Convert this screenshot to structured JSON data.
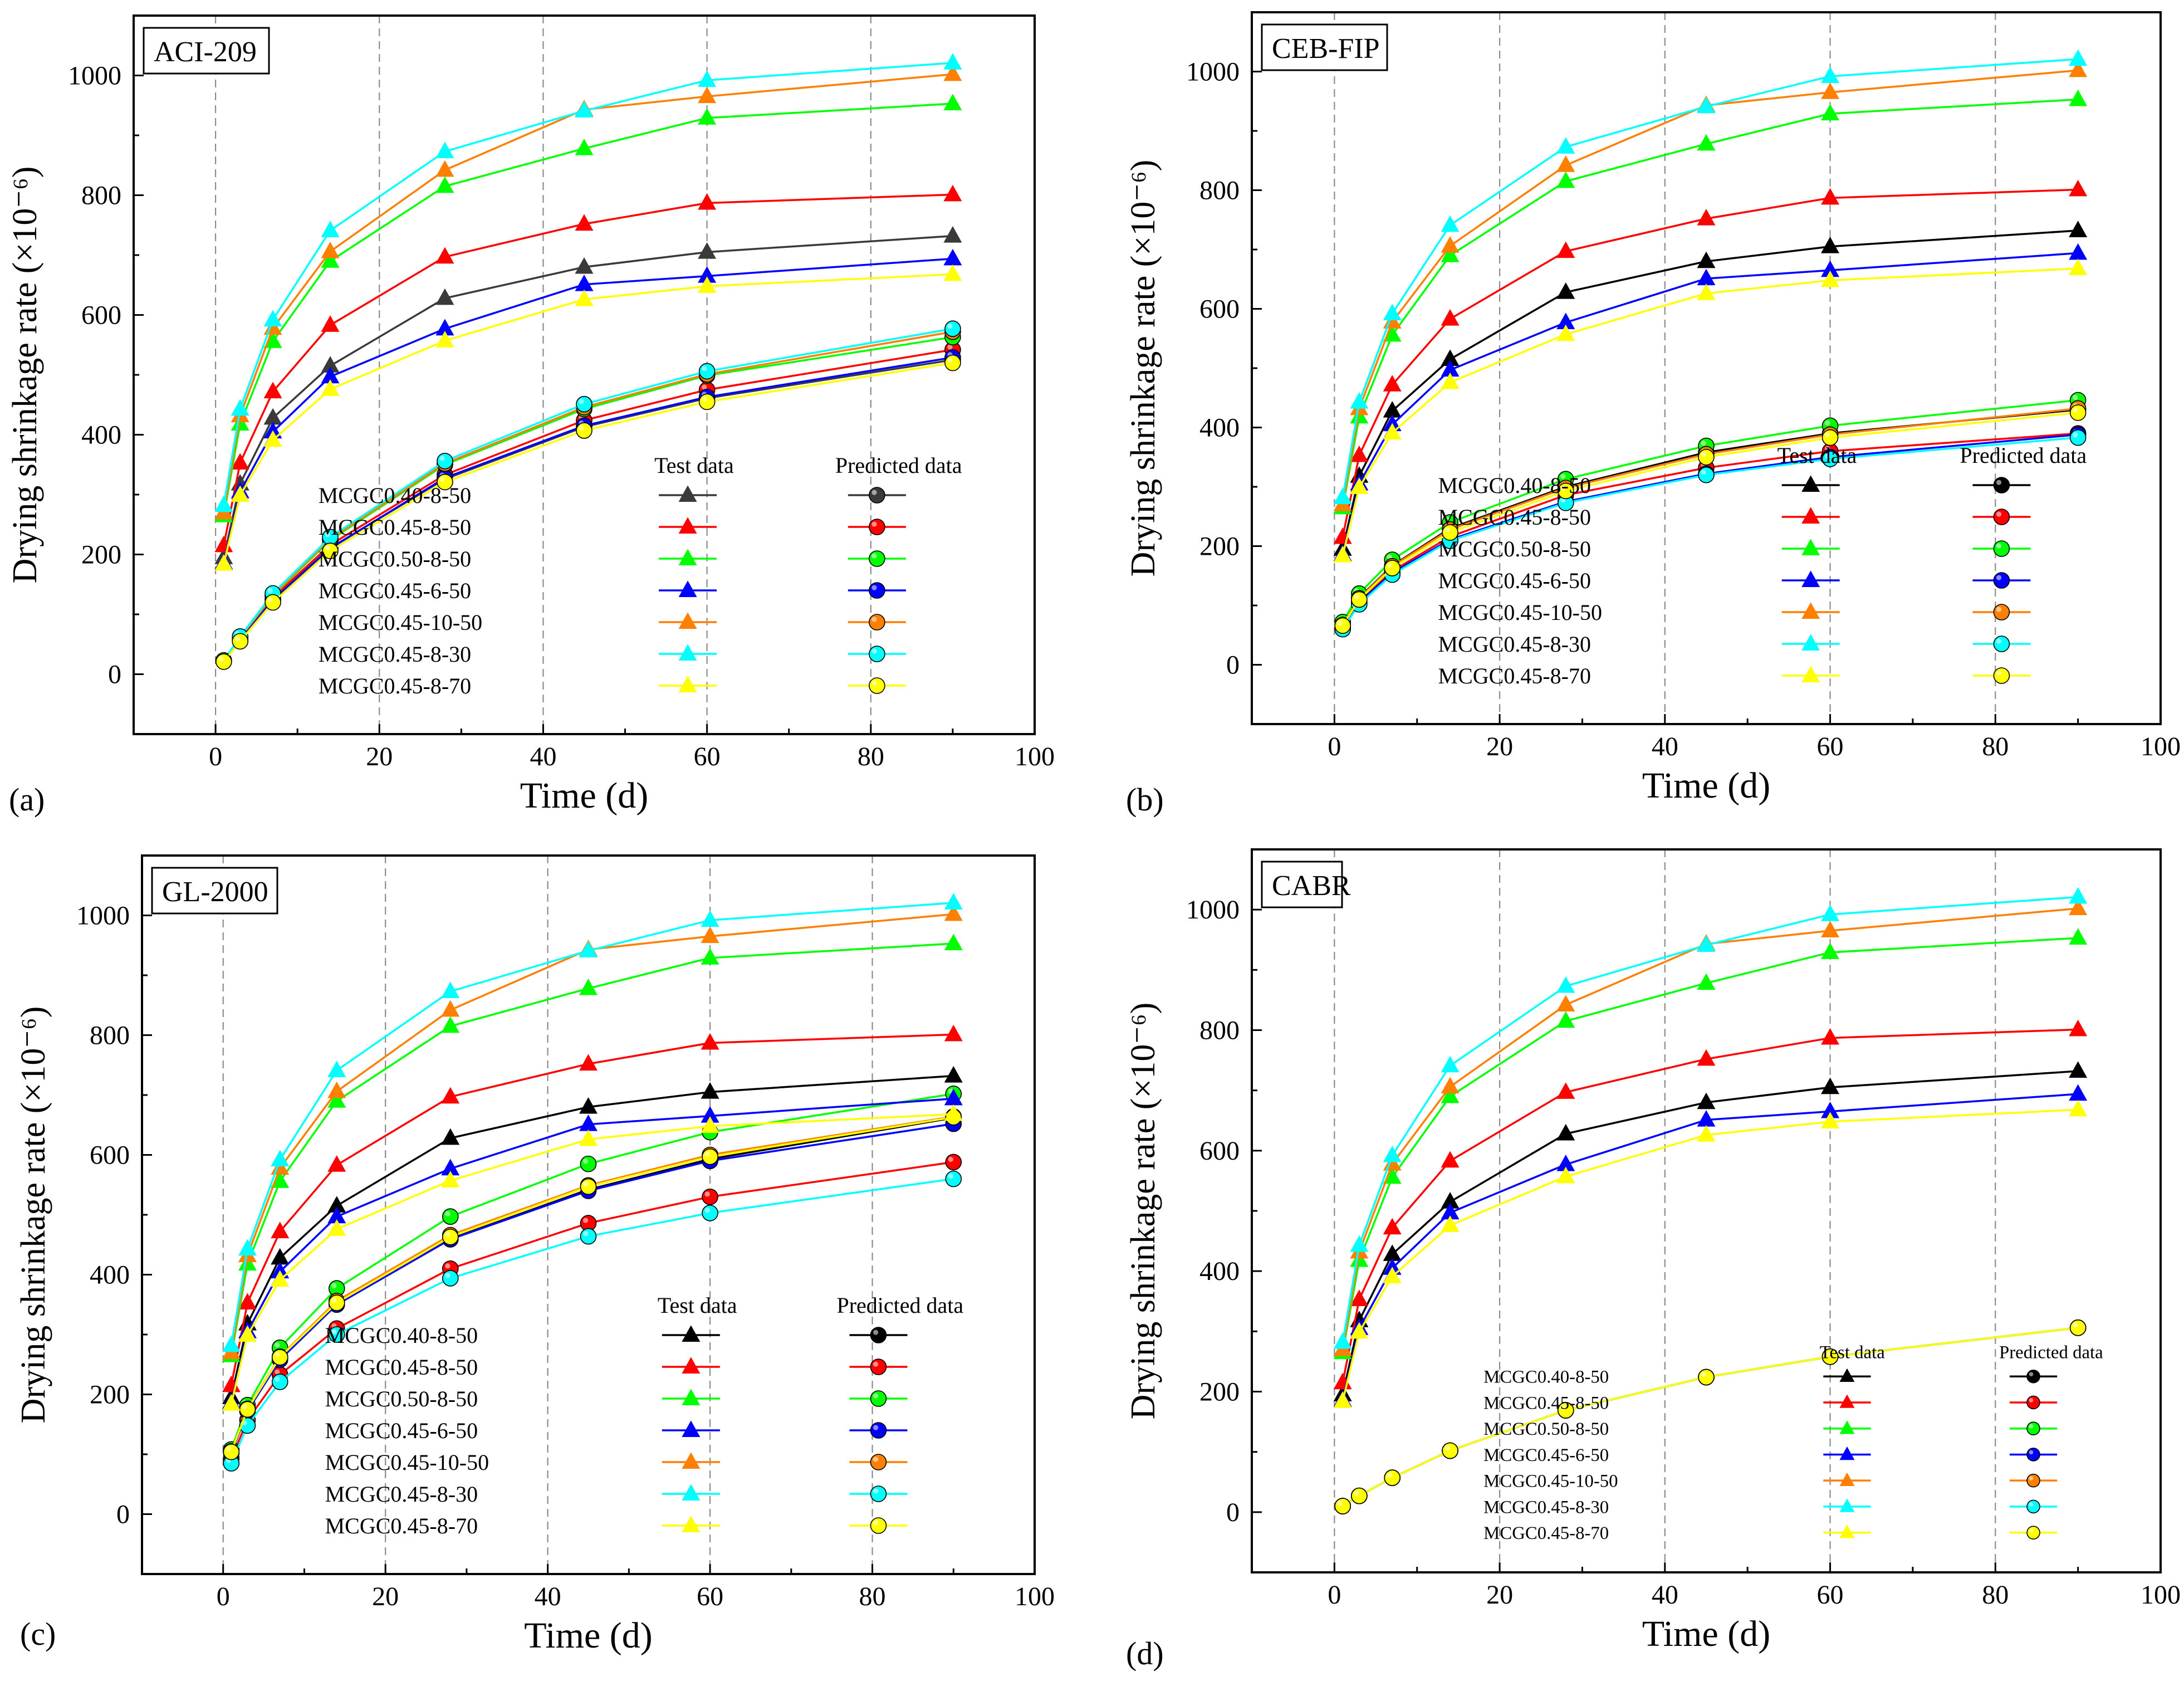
{
  "chart_data": [
    {
      "type": "line",
      "panel_label": "(a)",
      "title": "ACI-209",
      "xlabel": "Time (d)",
      "ylabel": "Drying shrinkage rate (×10⁻⁶)",
      "xlim": [
        -10,
        100
      ],
      "ylim": [
        -100,
        1100
      ],
      "xticks": [
        0,
        20,
        40,
        60,
        80,
        100
      ],
      "yticks": [
        0,
        200,
        400,
        600,
        800,
        1000
      ],
      "grid": "vertical dashed at x = 0, 20, 40, 60, 80",
      "legend": {
        "position": "bottom-right",
        "header_test": "Test data",
        "header_pred": "Predicted data"
      },
      "x": [
        1,
        3,
        7,
        14,
        28,
        45,
        60,
        90
      ],
      "series": [
        {
          "name": "MCGC0.40-8-50",
          "color": "#3a3a3a",
          "test": [
            195,
            318,
            428,
            515,
            628,
            680,
            705,
            732
          ],
          "predicted": [
            22,
            56,
            125,
            211,
            326,
            413,
            461,
            525
          ]
        },
        {
          "name": "MCGC0.45-8-50",
          "color": "#ff0000",
          "test": [
            215,
            353,
            472,
            583,
            697,
            752,
            787,
            801
          ],
          "predicted": [
            22,
            58,
            128,
            216,
            333,
            424,
            475,
            542
          ]
        },
        {
          "name": "MCGC0.50-8-50",
          "color": "#00ff00",
          "test": [
            265,
            418,
            556,
            690,
            815,
            878,
            929,
            953
          ],
          "predicted": [
            22,
            61,
            131,
            224,
            350,
            443,
            499,
            563
          ]
        },
        {
          "name": "MCGC0.45-6-50",
          "color": "#0000ff",
          "test": [
            186,
            305,
            405,
            497,
            577,
            651,
            665,
            694
          ],
          "predicted": [
            22,
            57,
            124,
            210,
            328,
            415,
            463,
            529
          ]
        },
        {
          "name": "MCGC0.45-10-50",
          "color": "#ff7f00",
          "test": [
            270,
            432,
            578,
            706,
            842,
            943,
            965,
            1002
          ],
          "predicted": [
            23,
            61,
            132,
            226,
            352,
            446,
            501,
            572
          ]
        },
        {
          "name": "MCGC0.45-8-30",
          "color": "#00ffff",
          "test": [
            282,
            443,
            592,
            741,
            873,
            941,
            992,
            1021
          ],
          "predicted": [
            23,
            63,
            135,
            229,
            356,
            451,
            506,
            577
          ]
        },
        {
          "name": "MCGC0.45-8-70",
          "color": "#ffff00",
          "test": [
            184,
            299,
            391,
            476,
            557,
            626,
            648,
            668
          ],
          "predicted": [
            21,
            55,
            120,
            206,
            321,
            407,
            455,
            520
          ]
        }
      ]
    },
    {
      "type": "line",
      "panel_label": "(b)",
      "title": "CEB-FIP",
      "xlabel": "Time (d)",
      "ylabel": "Drying shrinkage rate (×10⁻⁶)",
      "xlim": [
        -10,
        100
      ],
      "ylim": [
        -100,
        1100
      ],
      "xticks": [
        0,
        20,
        40,
        60,
        80,
        100
      ],
      "yticks": [
        0,
        200,
        400,
        600,
        800,
        1000
      ],
      "grid": "vertical dashed at x = 0, 20, 40, 60, 80",
      "legend": {
        "position": "bottom-right",
        "header_test": "Test data",
        "header_pred": "Predicted data"
      },
      "x": [
        1,
        3,
        7,
        14,
        28,
        45,
        60,
        90
      ],
      "series": [
        {
          "name": "MCGC0.40-8-50",
          "color": "#000000",
          "test": [
            195,
            318,
            428,
            515,
            628,
            680,
            705,
            732
          ],
          "predicted": [
            68,
            113,
            167,
            230,
            300,
            358,
            390,
            430
          ]
        },
        {
          "name": "MCGC0.45-8-50",
          "color": "#ff0000",
          "test": [
            215,
            353,
            472,
            583,
            697,
            752,
            787,
            801
          ],
          "predicted": [
            63,
            107,
            158,
            216,
            286,
            332,
            360,
            390
          ]
        },
        {
          "name": "MCGC0.50-8-50",
          "color": "#00ff00",
          "test": [
            265,
            418,
            556,
            690,
            815,
            878,
            929,
            953
          ],
          "predicted": [
            72,
            120,
            177,
            240,
            313,
            369,
            403,
            446
          ]
        },
        {
          "name": "MCGC0.45-6-50",
          "color": "#0000ff",
          "test": [
            186,
            305,
            405,
            497,
            577,
            651,
            665,
            694
          ],
          "predicted": [
            62,
            105,
            155,
            211,
            275,
            322,
            350,
            388
          ]
        },
        {
          "name": "MCGC0.45-10-50",
          "color": "#ff7f00",
          "test": [
            270,
            432,
            578,
            706,
            842,
            943,
            965,
            1002
          ],
          "predicted": [
            67,
            112,
            166,
            228,
            298,
            355,
            388,
            432
          ]
        },
        {
          "name": "MCGC0.45-8-30",
          "color": "#00ffff",
          "test": [
            282,
            443,
            592,
            741,
            873,
            941,
            992,
            1021
          ],
          "predicted": [
            60,
            102,
            152,
            209,
            273,
            320,
            347,
            383
          ]
        },
        {
          "name": "MCGC0.45-8-70",
          "color": "#ffff00",
          "test": [
            184,
            299,
            391,
            476,
            557,
            626,
            648,
            668
          ],
          "predicted": [
            66,
            110,
            163,
            223,
            293,
            350,
            383,
            425
          ]
        }
      ]
    },
    {
      "type": "line",
      "panel_label": "(c)",
      "title": "GL-2000",
      "xlabel": "Time (d)",
      "ylabel": "Drying shrinkage rate (×10⁻⁶)",
      "xlim": [
        -10,
        100
      ],
      "ylim": [
        -100,
        1100
      ],
      "xticks": [
        0,
        20,
        40,
        60,
        80,
        100
      ],
      "yticks": [
        0,
        200,
        400,
        600,
        800,
        1000
      ],
      "grid": "vertical dashed at x = 0, 20, 40, 60, 80",
      "legend": {
        "position": "bottom-right",
        "header_test": "Test data",
        "header_pred": "Predicted data"
      },
      "x": [
        1,
        3,
        7,
        14,
        28,
        45,
        60,
        90
      ],
      "series": [
        {
          "name": "MCGC0.40-8-50",
          "color": "#000000",
          "test": [
            195,
            318,
            428,
            515,
            628,
            680,
            705,
            732
          ],
          "predicted": [
            103,
            173,
            260,
            352,
            460,
            542,
            593,
            662
          ]
        },
        {
          "name": "MCGC0.45-8-50",
          "color": "#ff0000",
          "test": [
            215,
            353,
            472,
            583,
            697,
            752,
            787,
            801
          ],
          "predicted": [
            93,
            157,
            233,
            310,
            410,
            486,
            530,
            588
          ]
        },
        {
          "name": "MCGC0.50-8-50",
          "color": "#00ff00",
          "test": [
            265,
            418,
            556,
            690,
            815,
            878,
            929,
            953
          ],
          "predicted": [
            108,
            182,
            278,
            377,
            497,
            585,
            638,
            702
          ]
        },
        {
          "name": "MCGC0.45-6-50",
          "color": "#0000ff",
          "test": [
            186,
            305,
            405,
            497,
            577,
            651,
            665,
            694
          ],
          "predicted": [
            102,
            172,
            258,
            350,
            459,
            540,
            590,
            652
          ]
        },
        {
          "name": "MCGC0.45-10-50",
          "color": "#ff7f00",
          "test": [
            270,
            432,
            578,
            706,
            842,
            943,
            965,
            1002
          ],
          "predicted": [
            105,
            176,
            263,
            356,
            466,
            549,
            600,
            664
          ]
        },
        {
          "name": "MCGC0.45-8-30",
          "color": "#00ffff",
          "test": [
            282,
            443,
            592,
            741,
            873,
            941,
            992,
            1021
          ],
          "predicted": [
            85,
            148,
            221,
            300,
            394,
            464,
            503,
            560
          ]
        },
        {
          "name": "MCGC0.45-8-70",
          "color": "#ffff00",
          "test": [
            184,
            299,
            391,
            476,
            557,
            626,
            648,
            668
          ],
          "predicted": [
            104,
            175,
            262,
            353,
            463,
            547,
            597,
            663
          ]
        }
      ]
    },
    {
      "type": "line",
      "panel_label": "(d)",
      "title": "CABR",
      "xlabel": "Time (d)",
      "ylabel": "Drying shrinkage rate (×10⁻⁶)",
      "xlim": [
        -10,
        100
      ],
      "ylim": [
        -100,
        1100
      ],
      "xticks": [
        0,
        20,
        40,
        60,
        80,
        100
      ],
      "yticks": [
        0,
        200,
        400,
        600,
        800,
        1000
      ],
      "grid": "vertical dashed at x = 0, 20, 40, 60, 80",
      "legend": {
        "position": "bottom-right",
        "header_test": "Test data",
        "header_pred": "Predicted data"
      },
      "x": [
        1,
        3,
        7,
        14,
        28,
        45,
        60,
        90
      ],
      "series": [
        {
          "name": "MCGC0.40-8-50",
          "color": "#000000",
          "test": [
            195,
            318,
            428,
            515,
            628,
            680,
            705,
            732
          ],
          "predicted": [
            10,
            27,
            57,
            102,
            169,
            224,
            258,
            306
          ]
        },
        {
          "name": "MCGC0.45-8-50",
          "color": "#ff0000",
          "test": [
            215,
            353,
            472,
            583,
            697,
            752,
            787,
            801
          ],
          "predicted": [
            10,
            27,
            57,
            102,
            169,
            224,
            258,
            306
          ]
        },
        {
          "name": "MCGC0.50-8-50",
          "color": "#00ff00",
          "test": [
            265,
            418,
            556,
            690,
            815,
            878,
            929,
            953
          ],
          "predicted": [
            10,
            27,
            57,
            102,
            169,
            224,
            258,
            306
          ]
        },
        {
          "name": "MCGC0.45-6-50",
          "color": "#0000ff",
          "test": [
            186,
            305,
            405,
            497,
            577,
            651,
            665,
            694
          ],
          "predicted": [
            10,
            27,
            57,
            102,
            169,
            224,
            258,
            306
          ]
        },
        {
          "name": "MCGC0.45-10-50",
          "color": "#ff7f00",
          "test": [
            270,
            432,
            578,
            706,
            842,
            943,
            965,
            1002
          ],
          "predicted": [
            10,
            27,
            57,
            102,
            169,
            224,
            258,
            306
          ]
        },
        {
          "name": "MCGC0.45-8-30",
          "color": "#00ffff",
          "test": [
            282,
            443,
            592,
            741,
            873,
            941,
            992,
            1021
          ],
          "predicted": [
            10,
            27,
            57,
            102,
            169,
            224,
            258,
            306
          ]
        },
        {
          "name": "MCGC0.45-8-70",
          "color": "#ffff00",
          "test": [
            184,
            299,
            391,
            476,
            557,
            626,
            648,
            668
          ],
          "predicted": [
            10,
            27,
            57,
            102,
            169,
            224,
            258,
            306
          ]
        }
      ]
    }
  ]
}
